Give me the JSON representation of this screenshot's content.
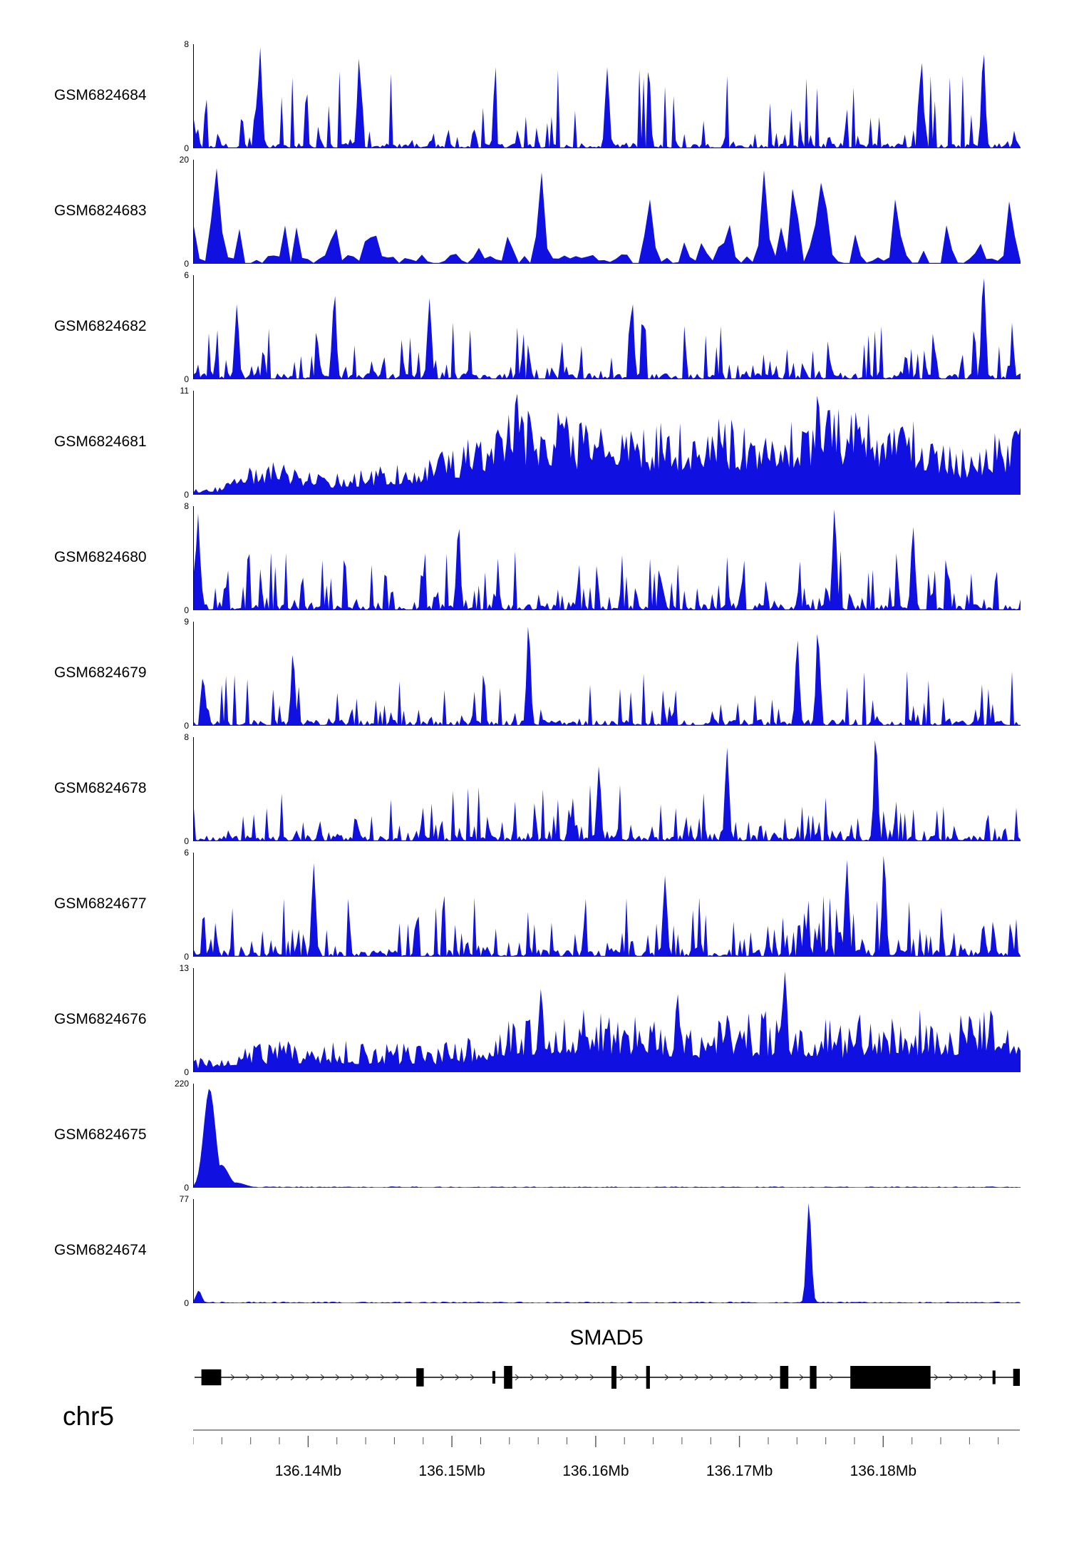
{
  "page": {
    "background": "#ffffff"
  },
  "chart_data": {
    "type": "area",
    "description": "Genome browser coverage tracks over the SMAD5 locus",
    "region": {
      "chrom": "chr5",
      "start_mb": 136.132,
      "end_mb": 136.1895
    },
    "signal_color": "#1010e0",
    "axis": {
      "tick_labels": [
        "136.14Mb",
        "136.15Mb",
        "136.16Mb",
        "136.17Mb",
        "136.18Mb"
      ],
      "tick_values_mb": [
        136.14,
        136.15,
        136.16,
        136.17,
        136.18
      ],
      "minor_tick_interval_mb": 0.002
    },
    "gene": {
      "name": "SMAD5",
      "strand": "right",
      "exons": [
        {
          "x": 0.01,
          "w": 0.024,
          "h": 0.7
        },
        {
          "x": 0.27,
          "w": 0.009,
          "h": 0.8
        },
        {
          "x": 0.362,
          "w": 0.0035,
          "h": 0.55
        },
        {
          "x": 0.376,
          "w": 0.01,
          "h": 1
        },
        {
          "x": 0.506,
          "w": 0.006,
          "h": 1
        },
        {
          "x": 0.548,
          "w": 0.0045,
          "h": 1
        },
        {
          "x": 0.71,
          "w": 0.01,
          "h": 1
        },
        {
          "x": 0.746,
          "w": 0.008,
          "h": 1
        },
        {
          "x": 0.795,
          "w": 0.097,
          "h": 1
        },
        {
          "x": 0.967,
          "w": 0.0035,
          "h": 0.6
        },
        {
          "x": 0.992,
          "w": 0.008,
          "h": 0.75
        }
      ]
    },
    "tracks": [
      {
        "label": "GSM6824684",
        "ymax": 8,
        "ymin": 0,
        "style": "spiky",
        "seed": 101,
        "step": 3,
        "density": 0.55,
        "exp": 4,
        "base": 0.05,
        "env": [
          [
            0,
            0.8
          ],
          [
            1,
            0.8
          ]
        ],
        "peaks": [
          {
            "p": 0.08,
            "h": 0.97,
            "w": 0.0025
          },
          {
            "p": 0.2,
            "h": 0.86,
            "w": 0.0025
          },
          {
            "p": 0.5,
            "h": 0.78,
            "w": 0.0025
          },
          {
            "p": 0.88,
            "h": 0.82,
            "w": 0.0025
          },
          {
            "p": 0.955,
            "h": 0.9,
            "w": 0.0025
          }
        ]
      },
      {
        "label": "GSM6824683",
        "ymax": 20,
        "ymin": 0,
        "style": "spiky",
        "seed": 202,
        "step": 8,
        "density": 0.5,
        "exp": 3,
        "base": 0.09,
        "env": [
          [
            0,
            0.4
          ],
          [
            1,
            0.4
          ]
        ],
        "peaks": [
          {
            "p": 0.027,
            "h": 0.92,
            "w": 0.005
          },
          {
            "p": 0.42,
            "h": 0.88,
            "w": 0.004
          },
          {
            "p": 0.55,
            "h": 0.62,
            "w": 0.004
          },
          {
            "p": 0.69,
            "h": 0.9,
            "w": 0.004
          },
          {
            "p": 0.727,
            "h": 0.72,
            "w": 0.004
          },
          {
            "p": 0.762,
            "h": 0.78,
            "w": 0.004
          },
          {
            "p": 0.85,
            "h": 0.62,
            "w": 0.004
          },
          {
            "p": 0.988,
            "h": 0.6,
            "w": 0.004
          }
        ]
      },
      {
        "label": "GSM6824682",
        "ymax": 6,
        "ymin": 0,
        "style": "spiky",
        "seed": 303,
        "step": 3,
        "density": 0.62,
        "exp": 3.2,
        "base": 0.06,
        "env": [
          [
            0,
            0.55
          ],
          [
            1,
            0.55
          ]
        ],
        "peaks": [
          {
            "p": 0.052,
            "h": 0.72,
            "w": 0.0025
          },
          {
            "p": 0.17,
            "h": 0.8,
            "w": 0.0025
          },
          {
            "p": 0.285,
            "h": 0.78,
            "w": 0.0025
          },
          {
            "p": 0.53,
            "h": 0.72,
            "w": 0.0025
          },
          {
            "p": 0.955,
            "h": 0.97,
            "w": 0.0025
          }
        ]
      },
      {
        "label": "GSM6824681",
        "ymax": 11,
        "ymin": 0,
        "style": "dense",
        "seed": 404,
        "step": 3,
        "floor": 0.32,
        "exp": 1.6,
        "env": [
          [
            0,
            0.06
          ],
          [
            0.03,
            0.08
          ],
          [
            0.06,
            0.28
          ],
          [
            0.09,
            0.33
          ],
          [
            0.12,
            0.28
          ],
          [
            0.16,
            0.2
          ],
          [
            0.2,
            0.24
          ],
          [
            0.24,
            0.3
          ],
          [
            0.28,
            0.35
          ],
          [
            0.32,
            0.5
          ],
          [
            0.36,
            0.75
          ],
          [
            0.4,
            0.88
          ],
          [
            0.44,
            0.8
          ],
          [
            0.48,
            0.72
          ],
          [
            0.52,
            0.68
          ],
          [
            0.56,
            0.72
          ],
          [
            0.6,
            0.68
          ],
          [
            0.64,
            0.75
          ],
          [
            0.68,
            0.7
          ],
          [
            0.72,
            0.78
          ],
          [
            0.76,
            0.85
          ],
          [
            0.79,
            0.9
          ],
          [
            0.82,
            0.78
          ],
          [
            0.86,
            0.75
          ],
          [
            0.9,
            0.62
          ],
          [
            0.93,
            0.48
          ],
          [
            0.96,
            0.6
          ],
          [
            1,
            0.72
          ]
        ],
        "peaks": [
          {
            "p": 0.39,
            "h": 0.97,
            "w": 0.003
          },
          {
            "p": 0.755,
            "h": 0.95,
            "w": 0.003
          }
        ]
      },
      {
        "label": "GSM6824680",
        "ymax": 8,
        "ymin": 0,
        "style": "spiky",
        "seed": 505,
        "step": 3,
        "density": 0.6,
        "exp": 3.5,
        "base": 0.06,
        "env": [
          [
            0,
            0.6
          ],
          [
            1,
            0.6
          ]
        ],
        "peaks": [
          {
            "p": 0.005,
            "h": 0.93,
            "w": 0.0025
          },
          {
            "p": 0.32,
            "h": 0.78,
            "w": 0.0025
          },
          {
            "p": 0.775,
            "h": 0.97,
            "w": 0.0025
          },
          {
            "p": 0.87,
            "h": 0.8,
            "w": 0.0025
          }
        ]
      },
      {
        "label": "GSM6824679",
        "ymax": 9,
        "ymin": 0,
        "style": "spiky",
        "seed": 606,
        "step": 3,
        "density": 0.55,
        "exp": 3.5,
        "base": 0.06,
        "env": [
          [
            0,
            0.55
          ],
          [
            1,
            0.55
          ]
        ],
        "peaks": [
          {
            "p": 0.12,
            "h": 0.68,
            "w": 0.0025
          },
          {
            "p": 0.405,
            "h": 0.95,
            "w": 0.0025
          },
          {
            "p": 0.73,
            "h": 0.82,
            "w": 0.0025
          },
          {
            "p": 0.755,
            "h": 0.88,
            "w": 0.0025
          }
        ]
      },
      {
        "label": "GSM6824678",
        "ymax": 8,
        "ymin": 0,
        "style": "spiky",
        "seed": 707,
        "step": 3,
        "density": 0.55,
        "exp": 3.5,
        "base": 0.06,
        "env": [
          [
            0,
            0.55
          ],
          [
            1,
            0.55
          ]
        ],
        "peaks": [
          {
            "p": 0.49,
            "h": 0.72,
            "w": 0.0025
          },
          {
            "p": 0.645,
            "h": 0.9,
            "w": 0.0025
          },
          {
            "p": 0.825,
            "h": 0.97,
            "w": 0.0025
          }
        ]
      },
      {
        "label": "GSM6824677",
        "ymax": 6,
        "ymin": 0,
        "style": "spiky",
        "seed": 808,
        "step": 3,
        "density": 0.68,
        "exp": 2.8,
        "base": 0.07,
        "env": [
          [
            0,
            0.6
          ],
          [
            1,
            0.6
          ]
        ],
        "peaks": [
          {
            "p": 0.145,
            "h": 0.9,
            "w": 0.0025
          },
          {
            "p": 0.57,
            "h": 0.78,
            "w": 0.0025
          },
          {
            "p": 0.79,
            "h": 0.93,
            "w": 0.0025
          },
          {
            "p": 0.835,
            "h": 0.97,
            "w": 0.0025
          }
        ]
      },
      {
        "label": "GSM6824676",
        "ymax": 13,
        "ymin": 0,
        "style": "dense",
        "seed": 909,
        "step": 3,
        "floor": 0.26,
        "exp": 1.8,
        "env": [
          [
            0,
            0.12
          ],
          [
            0.06,
            0.28
          ],
          [
            0.12,
            0.32
          ],
          [
            0.2,
            0.3
          ],
          [
            0.3,
            0.28
          ],
          [
            0.38,
            0.5
          ],
          [
            0.42,
            0.62
          ],
          [
            0.47,
            0.7
          ],
          [
            0.52,
            0.6
          ],
          [
            0.58,
            0.5
          ],
          [
            0.64,
            0.55
          ],
          [
            0.7,
            0.6
          ],
          [
            0.74,
            0.55
          ],
          [
            0.78,
            0.5
          ],
          [
            0.82,
            0.6
          ],
          [
            0.86,
            0.65
          ],
          [
            0.9,
            0.55
          ],
          [
            0.95,
            0.6
          ],
          [
            1,
            0.62
          ]
        ],
        "peaks": [
          {
            "p": 0.42,
            "h": 0.8,
            "w": 0.003
          },
          {
            "p": 0.585,
            "h": 0.75,
            "w": 0.003
          },
          {
            "p": 0.715,
            "h": 0.97,
            "w": 0.003
          }
        ]
      },
      {
        "label": "GSM6824675",
        "ymax": 220,
        "ymin": 0,
        "style": "flat",
        "seed": 1010,
        "step": 3,
        "base": 0.012,
        "peaks": [
          {
            "p": 0.019,
            "h": 0.95,
            "w": 0.007
          },
          {
            "p": 0.033,
            "h": 0.22,
            "w": 0.009
          },
          {
            "p": 0.05,
            "h": 0.05,
            "w": 0.012
          }
        ]
      },
      {
        "label": "GSM6824674",
        "ymax": 77,
        "ymin": 0,
        "style": "flat",
        "seed": 1111,
        "step": 3,
        "base": 0.015,
        "peaks": [
          {
            "p": 0.006,
            "h": 0.12,
            "w": 0.0035
          },
          {
            "p": 0.744,
            "h": 0.96,
            "w": 0.003
          }
        ]
      }
    ]
  }
}
